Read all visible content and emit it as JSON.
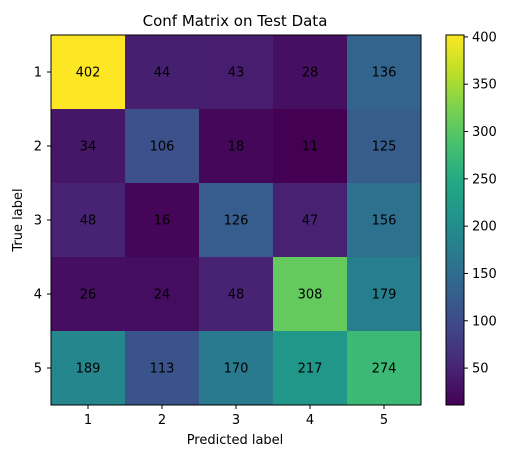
{
  "chart_data": {
    "type": "heatmap",
    "title": "Conf Matrix on Test Data",
    "xlabel": "Predicted label",
    "ylabel": "True label",
    "x_categories": [
      "1",
      "2",
      "3",
      "4",
      "5"
    ],
    "y_categories": [
      "1",
      "2",
      "3",
      "4",
      "5"
    ],
    "matrix": [
      [
        402,
        44,
        43,
        28,
        136
      ],
      [
        34,
        106,
        18,
        11,
        125
      ],
      [
        48,
        16,
        126,
        47,
        156
      ],
      [
        26,
        24,
        48,
        308,
        179
      ],
      [
        189,
        113,
        170,
        217,
        274
      ]
    ],
    "colormap": "viridis",
    "vmin": 11,
    "vmax": 402,
    "colorbar_ticks": [
      50,
      100,
      150,
      200,
      250,
      300,
      350,
      400
    ],
    "colorbar_tick_labels": [
      "50",
      "100",
      "150",
      "200",
      "250",
      "300",
      "350",
      "400"
    ],
    "label_colors": {
      "on_dark": "#fde725",
      "on_light": "#440154"
    }
  }
}
